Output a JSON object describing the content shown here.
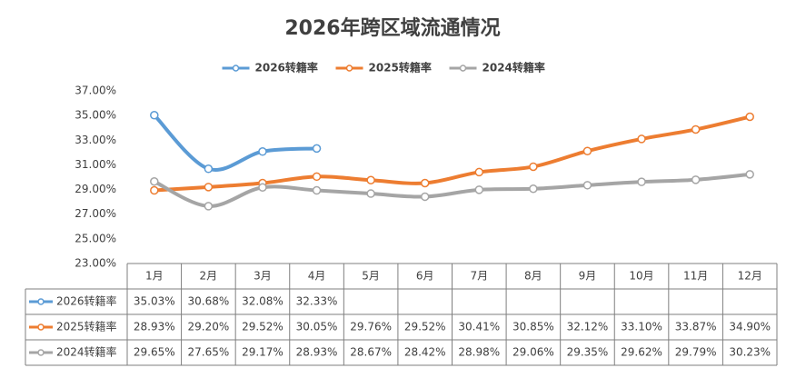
{
  "chart_data": {
    "type": "line",
    "title": "2026年跨区域流通情况",
    "categories": [
      "1月",
      "2月",
      "3月",
      "4月",
      "5月",
      "6月",
      "7月",
      "8月",
      "9月",
      "10月",
      "11月",
      "12月"
    ],
    "series": [
      {
        "name": "2026转籍率",
        "color": "#5b9bd5",
        "values": [
          35.03,
          30.68,
          32.08,
          32.33,
          null,
          null,
          null,
          null,
          null,
          null,
          null,
          null
        ],
        "value_labels": [
          "35.03%",
          "30.68%",
          "32.08%",
          "32.33%",
          null,
          null,
          null,
          null,
          null,
          null,
          null,
          null
        ]
      },
      {
        "name": "2025转籍率",
        "color": "#ed7d31",
        "values": [
          28.93,
          29.2,
          29.52,
          30.05,
          29.76,
          29.52,
          30.41,
          30.85,
          32.12,
          33.1,
          33.87,
          34.9
        ],
        "value_labels": [
          "28.93%",
          "29.20%",
          "29.52%",
          "30.05%",
          "29.76%",
          "29.52%",
          "30.41%",
          "30.85%",
          "32.12%",
          "33.10%",
          "33.87%",
          "34.90%"
        ]
      },
      {
        "name": "2024转籍率",
        "color": "#a5a5a5",
        "values": [
          29.65,
          27.65,
          29.17,
          28.93,
          28.67,
          28.42,
          28.98,
          29.06,
          29.35,
          29.62,
          29.79,
          30.23
        ],
        "value_labels": [
          "29.65%",
          "27.65%",
          "29.17%",
          "28.93%",
          "28.67%",
          "28.42%",
          "28.98%",
          "29.06%",
          "29.35%",
          "29.62%",
          "29.79%",
          "30.23%"
        ]
      }
    ],
    "ylim": [
      23,
      37
    ],
    "yticks": [
      {
        "value": 23,
        "label": "23.00%"
      },
      {
        "value": 25,
        "label": "25.00%"
      },
      {
        "value": 27,
        "label": "27.00%"
      },
      {
        "value": 29,
        "label": "29.00%"
      },
      {
        "value": 31,
        "label": "31.00%"
      },
      {
        "value": 33,
        "label": "33.00%"
      },
      {
        "value": 35,
        "label": "35.00%"
      },
      {
        "value": 37,
        "label": "37.00%"
      }
    ],
    "legend": "top"
  }
}
